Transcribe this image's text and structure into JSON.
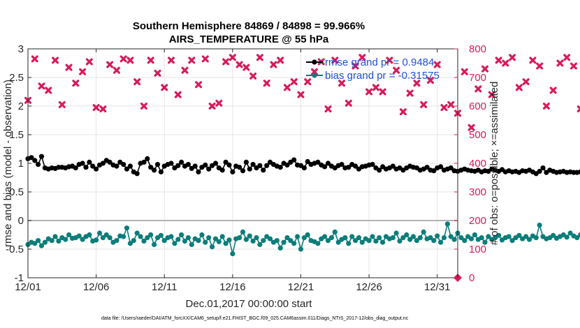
{
  "chart_data": {
    "type": "line",
    "title": "Southern Hemisphere 84869 / 84898 = 99.966%",
    "subtitle": "AIRS_TEMPERATURE @ 55 hPa",
    "xlabel": "Dec.01,2017 00:00:00 start",
    "ylabel_left": "rmse and bias (model - observation)",
    "ylabel_right": "# of obs: o=possible; ×=assimilated",
    "footnote": "data file: /Users/raeder/DAI/ATM_forcXX/CAM6_setup/f.e21.FHIST_BGC.f09_025.CAM6assim.011/Diags_NTrS_2017-12/obs_diag_output.nc",
    "xlim": [
      1,
      32.5
    ],
    "ylim_left": [
      -1,
      3
    ],
    "ylim_right": [
      0,
      800
    ],
    "x_ticks": [
      1,
      6,
      11,
      16,
      21,
      26,
      31
    ],
    "x_tick_labels": [
      "12/01",
      "12/06",
      "12/11",
      "12/16",
      "12/21",
      "12/26",
      "12/31"
    ],
    "y_ticks_left": [
      -1,
      -0.5,
      0,
      0.5,
      1,
      1.5,
      2,
      2.5,
      3
    ],
    "y_tick_labels_left": [
      "-1",
      "-0.5",
      "0",
      "0.5",
      "1",
      "1.5",
      "2",
      "2.5",
      "3"
    ],
    "y_ticks_right": [
      0,
      100,
      200,
      300,
      400,
      500,
      600,
      700,
      800
    ],
    "y_tick_labels_right": [
      "0",
      "100",
      "200",
      "300",
      "400",
      "500",
      "600",
      "700",
      "800"
    ],
    "grid": true,
    "legend_position": "top-right",
    "colors": {
      "rmse": "#000000",
      "bias": "#0b7d7a",
      "obs": "#d81b5a",
      "legend_text": "#1f4fd8",
      "zero_line": "#b3b3b3",
      "grid": "#e6e6e6"
    },
    "series": [
      {
        "name": "rmse grand pr = 0.9484",
        "axis": "left",
        "x_start": 1.0,
        "x_step": 0.25,
        "values": [
          1.08,
          1.1,
          1.05,
          0.98,
          1.12,
          0.92,
          0.9,
          0.92,
          0.91,
          0.93,
          0.93,
          0.92,
          0.94,
          0.95,
          0.92,
          0.98,
          1.0,
          0.93,
          1.02,
          0.95,
          0.9,
          0.97,
          1.0,
          1.05,
          1.02,
          0.97,
          0.95,
          1.02,
          0.98,
          0.9,
          0.95,
          0.85,
          0.82,
          1.0,
          1.02,
          1.08,
          0.93,
          0.88,
          0.98,
          0.85,
          0.95,
          0.98,
          1.0,
          0.92,
          0.96,
          1.02,
          0.95,
          0.98,
          0.91,
          0.95,
          0.85,
          0.93,
          0.97,
          0.9,
          0.96,
          1.0,
          0.92,
          0.88,
          1.02,
          0.97,
          0.85,
          0.95,
          0.93,
          0.87,
          1.02,
          0.9,
          0.98,
          0.92,
          0.96,
          0.88,
          0.96,
          1.02,
          0.98,
          0.95,
          0.93,
          1.0,
          0.97,
          1.02,
          1.06,
          0.97,
          0.96,
          0.92,
          1.03,
          0.98,
          1.0,
          1.02,
          0.97,
          0.94,
          1.0,
          0.95,
          0.92,
          0.96,
          0.98,
          0.92,
          0.93,
          0.98,
          0.95,
          0.9,
          0.94,
          0.95,
          0.97,
          0.98,
          0.92,
          0.88,
          0.94,
          0.9,
          0.92,
          0.95,
          0.9,
          0.92,
          0.88,
          0.92,
          0.95,
          0.93,
          0.92,
          0.88,
          0.9,
          0.93,
          0.88,
          0.87,
          0.92,
          0.94,
          0.88,
          0.9,
          0.92,
          0.87,
          0.86,
          0.88,
          0.9,
          0.88,
          0.87,
          0.86,
          0.88,
          0.85,
          0.87,
          0.86,
          0.9,
          0.88,
          0.86,
          0.89,
          0.85,
          0.87,
          0.85,
          0.86,
          0.84,
          0.87,
          0.86,
          0.88,
          0.85,
          0.82,
          0.86,
          0.92,
          0.84,
          0.88,
          0.86,
          0.84,
          0.85,
          0.86,
          0.84,
          0.85,
          0.84,
          0.84,
          0.85,
          0.84,
          0.85,
          0.84,
          0.84,
          0.84,
          0.84,
          0.84,
          0.84
        ]
      },
      {
        "name": "bias grand pr = -0.31575",
        "axis": "left",
        "x_start": 1.0,
        "x_step": 0.25,
        "values": [
          -0.42,
          -0.38,
          -0.4,
          -0.35,
          -0.44,
          -0.38,
          -0.32,
          -0.35,
          -0.28,
          -0.36,
          -0.3,
          -0.33,
          -0.25,
          -0.31,
          -0.3,
          -0.27,
          -0.33,
          -0.28,
          -0.25,
          -0.36,
          -0.34,
          -0.22,
          -0.3,
          -0.25,
          -0.3,
          -0.38,
          -0.35,
          -0.27,
          -0.28,
          -0.13,
          -0.4,
          -0.35,
          -0.22,
          -0.28,
          -0.36,
          -0.3,
          -0.25,
          -0.42,
          -0.3,
          -0.26,
          -0.35,
          -0.3,
          -0.28,
          -0.4,
          -0.33,
          -0.25,
          -0.36,
          -0.3,
          -0.42,
          -0.32,
          -0.35,
          -0.25,
          -0.38,
          -0.3,
          -0.46,
          -0.32,
          -0.37,
          -0.28,
          -0.4,
          -0.34,
          -0.58,
          -0.32,
          -0.3,
          -0.2,
          -0.33,
          -0.27,
          -0.36,
          -0.3,
          -0.42,
          -0.35,
          -0.28,
          -0.32,
          -0.38,
          -0.35,
          -0.48,
          -0.38,
          -0.3,
          -0.35,
          -0.4,
          -0.28,
          -0.5,
          -0.3,
          -0.25,
          -0.35,
          -0.37,
          -0.4,
          -0.32,
          -0.28,
          -0.35,
          -0.3,
          -0.2,
          -0.38,
          -0.33,
          -0.3,
          -0.4,
          -0.28,
          -0.35,
          -0.3,
          -0.38,
          -0.32,
          -0.35,
          -0.28,
          -0.36,
          -0.3,
          -0.38,
          -0.28,
          -0.32,
          -0.3,
          -0.22,
          -0.36,
          -0.3,
          -0.25,
          -0.33,
          -0.28,
          -0.35,
          -0.3,
          -0.2,
          -0.32,
          -0.3,
          -0.35,
          -0.27,
          -0.38,
          -0.3,
          -0.06,
          -0.28,
          -0.33,
          -0.22,
          -0.3,
          -0.35,
          -0.28,
          -0.32,
          -0.25,
          -0.33,
          -0.3,
          -0.38,
          -0.28,
          -0.33,
          -0.3,
          -0.26,
          -0.34,
          -0.3,
          -0.28,
          -0.35,
          -0.3,
          -0.26,
          -0.32,
          -0.28,
          -0.33,
          -0.27,
          -0.3,
          -0.08,
          -0.28,
          -0.32,
          -0.3,
          -0.26,
          -0.31,
          -0.28,
          -0.25,
          -0.29,
          -0.22,
          -0.27,
          -0.3,
          -0.25,
          -0.28,
          -0.26,
          -0.24,
          -0.29,
          -0.27,
          -0.28,
          -0.27,
          -0.28,
          -0.27,
          -0.26,
          -0.27,
          -0.25,
          -0.24
        ]
      },
      {
        "name": "obs assimilated",
        "axis": "right",
        "x_start": 1.0,
        "x_step": 0.5,
        "values": [
          620,
          765,
          670,
          655,
          760,
          605,
          735,
          680,
          720,
          755,
          595,
          590,
          745,
          725,
          765,
          760,
          685,
          600,
          760,
          715,
          665,
          760,
          640,
          725,
          760,
          675,
          765,
          600,
          610,
          755,
          770,
          745,
          735,
          705,
          770,
          680,
          745,
          760,
          665,
          685,
          640,
          685,
          720,
          755,
          590,
          760,
          680,
          610,
          740,
          770,
          650,
          665,
          650,
          760,
          725,
          580,
          645,
          680,
          605,
          690,
          745,
          595,
          605,
          575,
          720,
          525,
          660,
          730,
          640,
          760,
          750,
          770,
          665,
          685,
          760,
          740,
          600,
          655,
          750,
          770,
          740,
          590,
          570,
          625,
          725,
          730,
          650,
          665,
          665,
          655,
          660,
          610,
          720,
          770,
          615,
          740,
          600,
          740,
          755,
          695,
          600,
          745,
          670,
          720,
          675,
          610,
          650,
          755,
          745,
          770,
          660,
          700,
          765,
          755,
          755,
          585,
          590,
          740,
          770,
          730,
          780,
          590,
          670,
          640,
          595,
          765,
          680,
          600,
          655,
          635,
          740,
          705,
          735,
          755,
          620,
          645,
          745,
          610,
          595,
          740,
          690
        ]
      },
      {
        "name": "obs possible",
        "axis": "right",
        "x_start": 32.5,
        "x_step": 1,
        "values": [
          0
        ]
      }
    ]
  }
}
